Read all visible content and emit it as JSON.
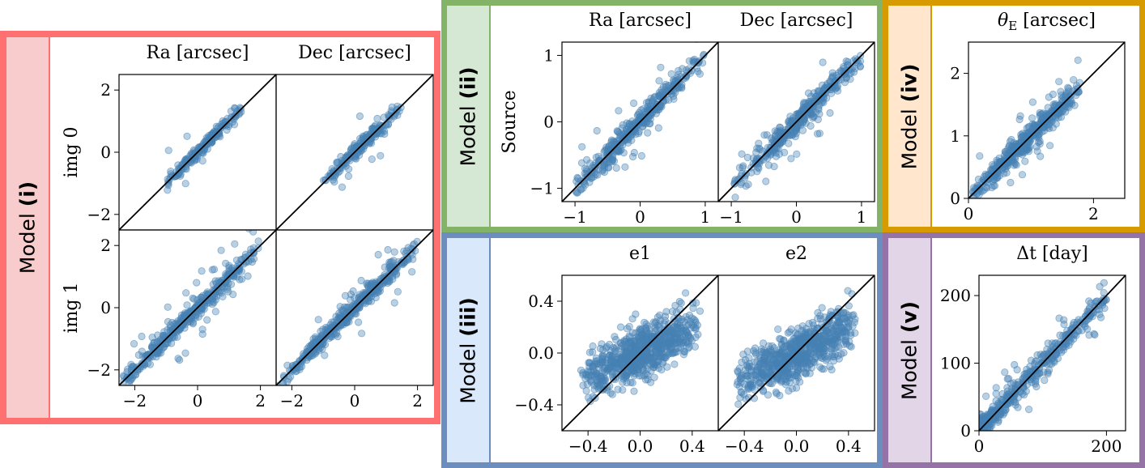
{
  "colors": {
    "point": "#4682b4",
    "line": "#000000",
    "border_i": "#ff7171",
    "tab_i": "#f8cccc",
    "border_ii": "#82b366",
    "tab_ii": "#d5e8d4",
    "border_iii": "#6c8ebf",
    "tab_iii": "#dae8fc",
    "border_iv": "#d79b00",
    "tab_iv": "#ffe6cc",
    "border_v": "#9673a6",
    "tab_v": "#e1d5e7"
  },
  "panels": {
    "i": {
      "label_prefix": "Model ",
      "label_bold": "(i)"
    },
    "ii": {
      "label_prefix": "Model ",
      "label_bold": "(ii)"
    },
    "iii": {
      "label_prefix": "Model ",
      "label_bold": "(iii)"
    },
    "iv": {
      "label_prefix": "Model ",
      "label_bold": "(iv)"
    },
    "v": {
      "label_prefix": "Model ",
      "label_bold": "(v)"
    }
  },
  "chart_data": [
    {
      "id": "i-img0-ra",
      "type": "scatter",
      "panel": "i",
      "title": "Ra [arcsec]",
      "ylabel": "img 0",
      "xlabel": "",
      "xlim": [
        -2.5,
        2.5
      ],
      "ylim": [
        -2.5,
        2.5
      ],
      "xticks": [],
      "yticks": [
        -2,
        0,
        2
      ],
      "diagonal": true,
      "n_points": 200,
      "spread": 0.12,
      "outlier_frac": 0.03,
      "data_range": [
        -1.0,
        1.4
      ]
    },
    {
      "id": "i-img0-dec",
      "type": "scatter",
      "panel": "i",
      "title": "Dec [arcsec]",
      "ylabel": "",
      "xlabel": "",
      "xlim": [
        -2.5,
        2.5
      ],
      "ylim": [
        -2.5,
        2.5
      ],
      "xticks": [],
      "yticks": [],
      "diagonal": true,
      "n_points": 200,
      "spread": 0.12,
      "outlier_frac": 0.03,
      "data_range": [
        -1.0,
        1.5
      ]
    },
    {
      "id": "i-img1-ra",
      "type": "scatter",
      "panel": "i",
      "title": "",
      "ylabel": "img 1",
      "xlabel": "",
      "xlim": [
        -2.5,
        2.5
      ],
      "ylim": [
        -2.5,
        2.5
      ],
      "xticks": [
        -2,
        0,
        2
      ],
      "yticks": [
        -2,
        0,
        2
      ],
      "diagonal": true,
      "n_points": 420,
      "spread": 0.15,
      "outlier_frac": 0.06,
      "data_range": [
        -2.5,
        2.0
      ]
    },
    {
      "id": "i-img1-dec",
      "type": "scatter",
      "panel": "i",
      "title": "",
      "ylabel": "",
      "xlabel": "",
      "xlim": [
        -2.5,
        2.5
      ],
      "ylim": [
        -2.5,
        2.5
      ],
      "xticks": [
        -2,
        0,
        2
      ],
      "yticks": [],
      "diagonal": true,
      "n_points": 420,
      "spread": 0.15,
      "outlier_frac": 0.06,
      "data_range": [
        -2.5,
        2.0
      ]
    },
    {
      "id": "ii-source-ra",
      "type": "scatter",
      "panel": "ii",
      "title": "Ra [arcsec]",
      "ylabel": "Source",
      "xlabel": "",
      "xlim": [
        -1.2,
        1.2
      ],
      "ylim": [
        -1.2,
        1.2
      ],
      "xticks": [
        -1,
        0,
        1
      ],
      "yticks": [
        -1,
        0,
        1
      ],
      "diagonal": true,
      "n_points": 380,
      "spread": 0.09,
      "outlier_frac": 0.07,
      "data_range": [
        -1.0,
        1.0
      ]
    },
    {
      "id": "ii-source-dec",
      "type": "scatter",
      "panel": "ii",
      "title": "Dec [arcsec]",
      "ylabel": "",
      "xlabel": "",
      "xlim": [
        -1.2,
        1.2
      ],
      "ylim": [
        -1.2,
        1.2
      ],
      "xticks": [
        -1,
        0,
        1
      ],
      "yticks": [],
      "diagonal": true,
      "n_points": 380,
      "spread": 0.09,
      "outlier_frac": 0.06,
      "data_range": [
        -1.0,
        1.0
      ]
    },
    {
      "id": "iii-e1",
      "type": "scatter",
      "panel": "iii",
      "title": "e1",
      "ylabel": "",
      "xlabel": "",
      "xlim": [
        -0.6,
        0.6
      ],
      "ylim": [
        -0.6,
        0.6
      ],
      "xticks": [
        -0.4,
        0.0,
        0.4
      ],
      "yticks": [
        -0.4,
        0.0,
        0.4
      ],
      "tick_format": "0.0",
      "diagonal": true,
      "n_points": 700,
      "spread": 0.1,
      "outlier_frac": 0.0,
      "slope": 0.5,
      "data_range": [
        -0.45,
        0.45
      ]
    },
    {
      "id": "iii-e2",
      "type": "scatter",
      "panel": "iii",
      "title": "e2",
      "ylabel": "",
      "xlabel": "",
      "xlim": [
        -0.6,
        0.6
      ],
      "ylim": [
        -0.6,
        0.6
      ],
      "xticks": [
        -0.4,
        0.0,
        0.4
      ],
      "yticks": [],
      "tick_format": "0.0",
      "diagonal": true,
      "n_points": 700,
      "spread": 0.1,
      "outlier_frac": 0.0,
      "slope": 0.5,
      "data_range": [
        -0.45,
        0.45
      ]
    },
    {
      "id": "iv-theta",
      "type": "scatter",
      "panel": "iv",
      "title": "θE [arcsec]",
      "title_sub": "E",
      "ylabel": "",
      "xlabel": "",
      "xlim": [
        0,
        2.5
      ],
      "ylim": [
        0,
        2.5
      ],
      "xticks": [
        0,
        2
      ],
      "yticks": [
        0,
        1,
        2
      ],
      "diagonal": true,
      "n_points": 450,
      "spread": 0.09,
      "outlier_frac": 0.05,
      "data_range": [
        0.05,
        1.8
      ]
    },
    {
      "id": "v-dt",
      "type": "scatter",
      "panel": "v",
      "title": "Δt [day]",
      "ylabel": "",
      "xlabel": "",
      "xlim": [
        0,
        230
      ],
      "ylim": [
        0,
        230
      ],
      "xticks": [
        0,
        200
      ],
      "yticks": [
        0,
        100,
        200
      ],
      "diagonal": true,
      "n_points": 450,
      "spread": 8,
      "outlier_frac": 0.1,
      "data_range": [
        0,
        200
      ],
      "skew_low": true
    }
  ]
}
